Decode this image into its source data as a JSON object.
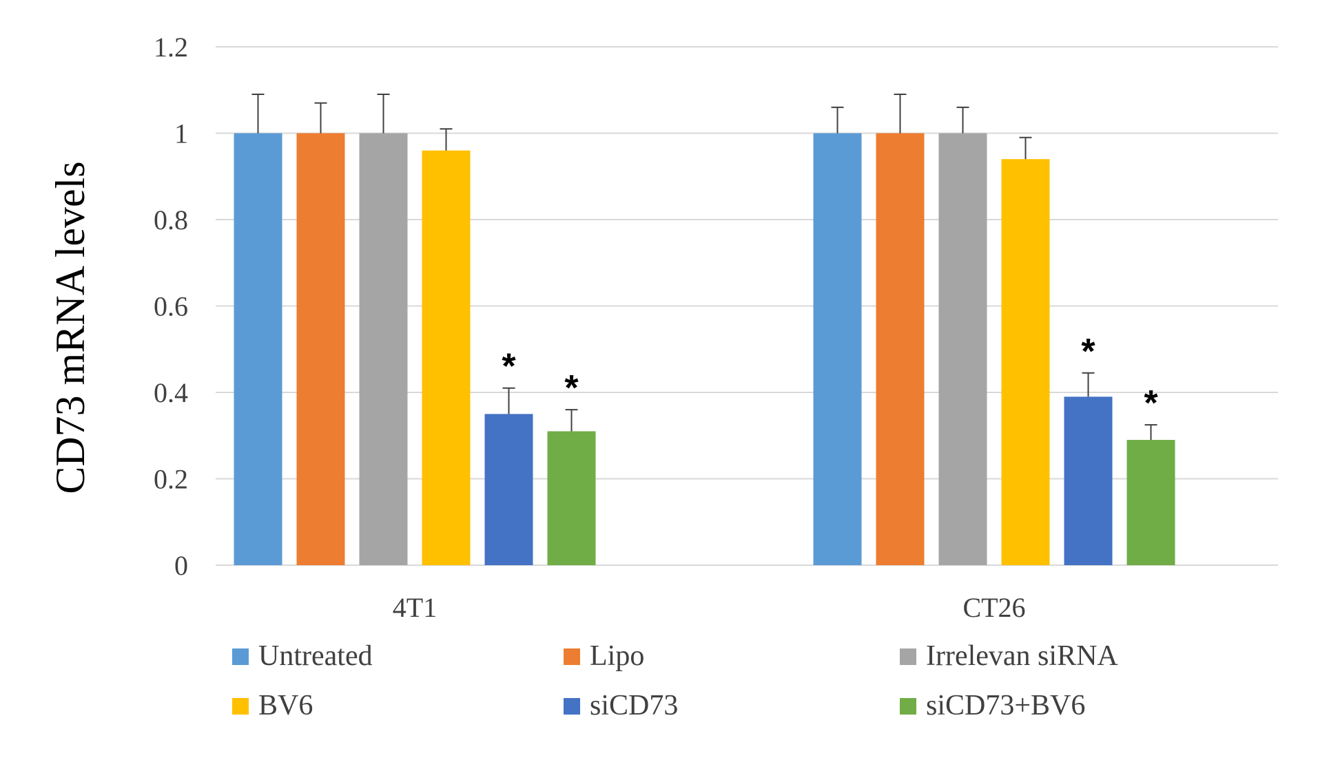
{
  "chart_data": {
    "type": "bar",
    "title": "",
    "xlabel": "",
    "ylabel": "CD73 mRNA levels",
    "ylim": [
      0,
      1.2
    ],
    "yticks": [
      0,
      0.2,
      0.4,
      0.6,
      0.8,
      1,
      1.2
    ],
    "grid": true,
    "legend_position": "bottom",
    "categories": [
      "4T1",
      "CT26"
    ],
    "series": [
      {
        "name": "Untreated",
        "color": "#5B9BD5",
        "values": [
          1.0,
          1.0
        ],
        "errors": [
          0.09,
          0.06
        ],
        "significance": [
          "",
          ""
        ]
      },
      {
        "name": "Lipo",
        "color": "#ED7D31",
        "values": [
          1.0,
          1.0
        ],
        "errors": [
          0.07,
          0.09
        ],
        "significance": [
          "",
          ""
        ]
      },
      {
        "name": "Irrelevan siRNA",
        "color": "#A5A5A5",
        "values": [
          1.0,
          1.0
        ],
        "errors": [
          0.09,
          0.06
        ],
        "significance": [
          "",
          ""
        ]
      },
      {
        "name": "BV6",
        "color": "#FFC000",
        "values": [
          0.96,
          0.94
        ],
        "errors": [
          0.05,
          0.05
        ],
        "significance": [
          "",
          ""
        ]
      },
      {
        "name": "siCD73",
        "color": "#4472C4",
        "values": [
          0.35,
          0.39
        ],
        "errors": [
          0.06,
          0.055
        ],
        "significance": [
          "*",
          "*"
        ]
      },
      {
        "name": "siCD73+BV6",
        "color": "#70AD47",
        "values": [
          0.31,
          0.29
        ],
        "errors": [
          0.05,
          0.035
        ],
        "significance": [
          "*",
          "*"
        ]
      }
    ]
  }
}
